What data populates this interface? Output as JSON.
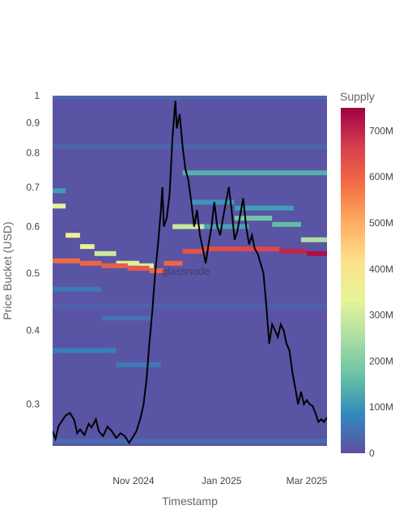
{
  "chart_data": {
    "type": "heatmap",
    "xlabel": "Timestamp",
    "ylabel": "Price Bucket (USD)",
    "y_scale": "log",
    "ylim": [
      0.255,
      1.0
    ],
    "y_ticks": [
      {
        "v": 1.0,
        "label": "1"
      },
      {
        "v": 0.9,
        "label": "0.9"
      },
      {
        "v": 0.8,
        "label": "0.8"
      },
      {
        "v": 0.7,
        "label": "0.7"
      },
      {
        "v": 0.6,
        "label": "0.6"
      },
      {
        "v": 0.5,
        "label": "0.5"
      },
      {
        "v": 0.4,
        "label": "0.4"
      },
      {
        "v": 0.3,
        "label": "0.3"
      }
    ],
    "x_range": [
      "2024-09-06",
      "2025-03-15"
    ],
    "x_ticks": [
      {
        "date": "2024-11-01",
        "label": "Nov 2024"
      },
      {
        "date": "2025-01-01",
        "label": "Jan 2025"
      },
      {
        "date": "2025-03-01",
        "label": "Mar 2025"
      }
    ],
    "colorbar": {
      "title": "Supply",
      "min": 0,
      "max": 750000000,
      "ticks": [
        {
          "v": 0,
          "label": "0"
        },
        {
          "v": 100000000,
          "label": "100M"
        },
        {
          "v": 200000000,
          "label": "200M"
        },
        {
          "v": 300000000,
          "label": "300M"
        },
        {
          "v": 400000000,
          "label": "400M"
        },
        {
          "v": 500000000,
          "label": "500M"
        },
        {
          "v": 600000000,
          "label": "600M"
        },
        {
          "v": 700000000,
          "label": "700M"
        }
      ],
      "colors": [
        "#5e4fa2",
        "#3288bd",
        "#66c2a5",
        "#abdda4",
        "#e6f598",
        "#fee08b",
        "#fdae61",
        "#f46d43",
        "#d53e4f",
        "#9e0142"
      ]
    },
    "background_supply": 8000000,
    "bands": [
      {
        "start": "2024-09-06",
        "end": "2025-03-15",
        "price": 0.26,
        "supply": 40000000
      },
      {
        "start": "2024-09-06",
        "end": "2025-03-15",
        "price": 0.44,
        "supply": 25000000
      },
      {
        "start": "2024-09-06",
        "end": "2025-03-15",
        "price": 0.82,
        "supply": 30000000
      },
      {
        "start": "2024-09-06",
        "end": "2025-03-15",
        "price": 0.995,
        "supply": 35000000
      },
      {
        "start": "2024-09-06",
        "end": "2024-09-15",
        "price": 0.65,
        "supply": 330000000
      },
      {
        "start": "2024-09-06",
        "end": "2024-09-15",
        "price": 0.69,
        "supply": 110000000
      },
      {
        "start": "2024-09-15",
        "end": "2024-09-25",
        "price": 0.58,
        "supply": 360000000
      },
      {
        "start": "2024-09-25",
        "end": "2024-10-05",
        "price": 0.555,
        "supply": 340000000
      },
      {
        "start": "2024-10-05",
        "end": "2024-10-20",
        "price": 0.54,
        "supply": 300000000
      },
      {
        "start": "2024-10-20",
        "end": "2024-11-05",
        "price": 0.52,
        "supply": 320000000
      },
      {
        "start": "2024-11-05",
        "end": "2024-11-15",
        "price": 0.515,
        "supply": 310000000
      },
      {
        "start": "2024-09-06",
        "end": "2024-09-25",
        "price": 0.525,
        "supply": 590000000
      },
      {
        "start": "2024-09-25",
        "end": "2024-10-10",
        "price": 0.52,
        "supply": 600000000
      },
      {
        "start": "2024-10-10",
        "end": "2024-10-28",
        "price": 0.515,
        "supply": 610000000
      },
      {
        "start": "2024-10-28",
        "end": "2024-11-12",
        "price": 0.51,
        "supply": 620000000
      },
      {
        "start": "2024-11-12",
        "end": "2024-11-22",
        "price": 0.505,
        "supply": 600000000
      },
      {
        "start": "2024-11-22",
        "end": "2024-12-05",
        "price": 0.52,
        "supply": 600000000
      },
      {
        "start": "2024-12-05",
        "end": "2024-12-20",
        "price": 0.545,
        "supply": 630000000
      },
      {
        "start": "2024-12-20",
        "end": "2025-01-15",
        "price": 0.55,
        "supply": 640000000
      },
      {
        "start": "2025-01-15",
        "end": "2025-02-10",
        "price": 0.55,
        "supply": 650000000
      },
      {
        "start": "2025-02-10",
        "end": "2025-03-01",
        "price": 0.545,
        "supply": 700000000
      },
      {
        "start": "2025-03-01",
        "end": "2025-03-15",
        "price": 0.54,
        "supply": 730000000
      },
      {
        "start": "2024-11-28",
        "end": "2024-12-20",
        "price": 0.6,
        "supply": 290000000
      },
      {
        "start": "2024-12-20",
        "end": "2025-01-20",
        "price": 0.6,
        "supply": 120000000
      },
      {
        "start": "2024-12-05",
        "end": "2025-03-15",
        "price": 0.74,
        "supply": 140000000
      },
      {
        "start": "2025-01-10",
        "end": "2025-02-05",
        "price": 0.62,
        "supply": 180000000
      },
      {
        "start": "2025-02-05",
        "end": "2025-02-25",
        "price": 0.605,
        "supply": 160000000
      },
      {
        "start": "2025-02-25",
        "end": "2025-03-15",
        "price": 0.57,
        "supply": 250000000
      },
      {
        "start": "2024-12-10",
        "end": "2025-01-10",
        "price": 0.66,
        "supply": 100000000
      },
      {
        "start": "2025-01-10",
        "end": "2025-02-20",
        "price": 0.645,
        "supply": 110000000
      },
      {
        "start": "2024-09-06",
        "end": "2024-10-10",
        "price": 0.47,
        "supply": 60000000
      },
      {
        "start": "2024-10-10",
        "end": "2024-11-15",
        "price": 0.42,
        "supply": 50000000
      },
      {
        "start": "2024-09-06",
        "end": "2024-10-20",
        "price": 0.37,
        "supply": 70000000
      },
      {
        "start": "2024-10-20",
        "end": "2024-11-20",
        "price": 0.35,
        "supply": 60000000
      }
    ],
    "series": [
      {
        "name": "Price",
        "color": "#000000",
        "points": [
          [
            "2024-09-06",
            0.27
          ],
          [
            "2024-09-08",
            0.262
          ],
          [
            "2024-09-10",
            0.275
          ],
          [
            "2024-09-12",
            0.28
          ],
          [
            "2024-09-15",
            0.287
          ],
          [
            "2024-09-18",
            0.29
          ],
          [
            "2024-09-21",
            0.282
          ],
          [
            "2024-09-23",
            0.268
          ],
          [
            "2024-09-25",
            0.272
          ],
          [
            "2024-09-28",
            0.266
          ],
          [
            "2024-10-01",
            0.278
          ],
          [
            "2024-10-03",
            0.274
          ],
          [
            "2024-10-06",
            0.283
          ],
          [
            "2024-10-08",
            0.27
          ],
          [
            "2024-10-11",
            0.265
          ],
          [
            "2024-10-14",
            0.275
          ],
          [
            "2024-10-17",
            0.27
          ],
          [
            "2024-10-20",
            0.263
          ],
          [
            "2024-10-23",
            0.268
          ],
          [
            "2024-10-26",
            0.265
          ],
          [
            "2024-10-29",
            0.258
          ],
          [
            "2024-11-01",
            0.265
          ],
          [
            "2024-11-03",
            0.27
          ],
          [
            "2024-11-06",
            0.285
          ],
          [
            "2024-11-08",
            0.3
          ],
          [
            "2024-11-10",
            0.33
          ],
          [
            "2024-11-12",
            0.38
          ],
          [
            "2024-11-14",
            0.43
          ],
          [
            "2024-11-16",
            0.5
          ],
          [
            "2024-11-18",
            0.56
          ],
          [
            "2024-11-20",
            0.64
          ],
          [
            "2024-11-21",
            0.7
          ],
          [
            "2024-11-22",
            0.6
          ],
          [
            "2024-11-24",
            0.62
          ],
          [
            "2024-11-26",
            0.68
          ],
          [
            "2024-11-28",
            0.85
          ],
          [
            "2024-11-30",
            0.98
          ],
          [
            "2024-12-01",
            0.88
          ],
          [
            "2024-12-03",
            0.93
          ],
          [
            "2024-12-05",
            0.82
          ],
          [
            "2024-12-07",
            0.75
          ],
          [
            "2024-12-09",
            0.72
          ],
          [
            "2024-12-11",
            0.66
          ],
          [
            "2024-12-13",
            0.6
          ],
          [
            "2024-12-15",
            0.64
          ],
          [
            "2024-12-17",
            0.58
          ],
          [
            "2024-12-19",
            0.55
          ],
          [
            "2024-12-21",
            0.52
          ],
          [
            "2024-12-23",
            0.56
          ],
          [
            "2024-12-25",
            0.6
          ],
          [
            "2024-12-27",
            0.66
          ],
          [
            "2024-12-29",
            0.6
          ],
          [
            "2024-12-31",
            0.58
          ],
          [
            "2025-01-02",
            0.62
          ],
          [
            "2025-01-04",
            0.66
          ],
          [
            "2025-01-06",
            0.7
          ],
          [
            "2025-01-08",
            0.64
          ],
          [
            "2025-01-10",
            0.57
          ],
          [
            "2025-01-12",
            0.59
          ],
          [
            "2025-01-14",
            0.63
          ],
          [
            "2025-01-16",
            0.67
          ],
          [
            "2025-01-18",
            0.6
          ],
          [
            "2025-01-20",
            0.56
          ],
          [
            "2025-01-22",
            0.58
          ],
          [
            "2025-01-24",
            0.55
          ],
          [
            "2025-01-26",
            0.54
          ],
          [
            "2025-01-28",
            0.52
          ],
          [
            "2025-01-30",
            0.5
          ],
          [
            "2025-02-01",
            0.44
          ],
          [
            "2025-02-03",
            0.38
          ],
          [
            "2025-02-05",
            0.41
          ],
          [
            "2025-02-07",
            0.4
          ],
          [
            "2025-02-09",
            0.39
          ],
          [
            "2025-02-11",
            0.41
          ],
          [
            "2025-02-13",
            0.4
          ],
          [
            "2025-02-15",
            0.38
          ],
          [
            "2025-02-17",
            0.37
          ],
          [
            "2025-02-19",
            0.34
          ],
          [
            "2025-02-21",
            0.32
          ],
          [
            "2025-02-23",
            0.3
          ],
          [
            "2025-02-25",
            0.315
          ],
          [
            "2025-02-27",
            0.3
          ],
          [
            "2025-03-01",
            0.305
          ],
          [
            "2025-03-03",
            0.3
          ],
          [
            "2025-03-05",
            0.298
          ],
          [
            "2025-03-07",
            0.29
          ],
          [
            "2025-03-09",
            0.28
          ],
          [
            "2025-03-11",
            0.283
          ],
          [
            "2025-03-13",
            0.28
          ],
          [
            "2025-03-15",
            0.285
          ]
        ]
      }
    ],
    "watermark": "glassnode"
  }
}
